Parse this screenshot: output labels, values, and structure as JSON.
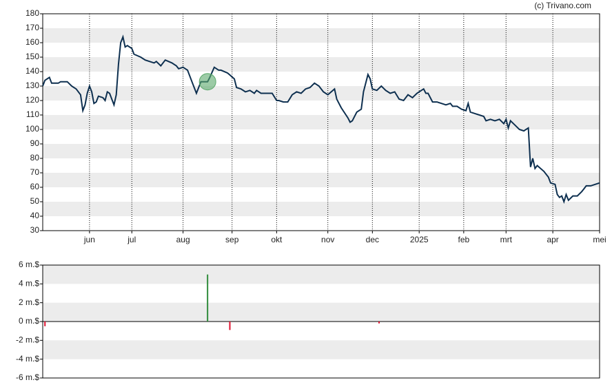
{
  "chart_data": [
    {
      "type": "line",
      "source": "(c) Trivano.com",
      "color": "#0d2f4f",
      "x": [
        0,
        1,
        3,
        4,
        7,
        8,
        11,
        13,
        15,
        17,
        18,
        19,
        20,
        21,
        22,
        23,
        24,
        25,
        27,
        28,
        29,
        30,
        32,
        33,
        34,
        35,
        36,
        37,
        38,
        40,
        41,
        44,
        46,
        50,
        51,
        53,
        55,
        58,
        60,
        61,
        63,
        65,
        67,
        69,
        71,
        74,
        75,
        77,
        79,
        80,
        83,
        86,
        87,
        89,
        91,
        93,
        95,
        96,
        98,
        100,
        103,
        105,
        106,
        108,
        110,
        112,
        114,
        116,
        118,
        120,
        122,
        124,
        126,
        128,
        131,
        132,
        134,
        137,
        138,
        139,
        141,
        143,
        144,
        146,
        147,
        148,
        150,
        152,
        154,
        156,
        158,
        160,
        162,
        164,
        166,
        168,
        170,
        171,
        172,
        173,
        175,
        177,
        179,
        181,
        183,
        184,
        186,
        188,
        190,
        191,
        192,
        194,
        196,
        198,
        199,
        201,
        203,
        205,
        207,
        208,
        209,
        210,
        212,
        214,
        216,
        217,
        218,
        219,
        220,
        221,
        222,
        225,
        227,
        228,
        230,
        231,
        232,
        233,
        234,
        235,
        236,
        238,
        240,
        242,
        243,
        244,
        246,
        248,
        250
      ],
      "values": [
        130,
        134,
        136,
        132,
        132,
        133,
        133,
        130,
        128,
        124,
        113,
        117,
        125,
        130,
        126,
        118,
        119,
        123,
        122,
        120,
        126,
        125,
        117,
        124,
        145,
        160,
        164,
        157,
        158,
        156,
        152,
        150,
        148,
        146,
        147,
        144,
        148,
        146,
        144,
        142,
        143,
        141,
        133,
        125,
        133,
        133,
        136,
        143,
        141,
        141,
        139,
        135,
        129,
        128,
        126,
        127,
        125,
        127,
        125,
        125,
        125,
        120,
        120,
        119,
        119,
        124,
        126,
        125,
        128,
        129,
        132,
        130,
        126,
        124,
        128,
        121,
        115,
        108,
        105,
        106,
        112,
        114,
        126,
        138,
        135,
        128,
        127,
        130,
        127,
        125,
        126,
        121,
        120,
        124,
        122,
        125,
        127,
        128,
        125,
        125,
        119,
        119,
        118,
        117,
        118,
        116,
        116,
        114,
        113,
        118,
        112,
        111,
        110,
        109,
        106,
        107,
        106,
        107,
        104,
        107,
        101,
        106,
        103,
        100,
        99,
        100,
        101,
        74,
        80,
        73,
        75,
        71,
        67,
        63,
        62,
        55,
        53,
        54,
        50,
        55,
        51,
        54,
        54,
        57,
        59,
        61,
        61,
        62,
        63
      ],
      "xlim": [
        0,
        250
      ],
      "xticks": [
        {
          "value": 21,
          "label": "jun"
        },
        {
          "value": 40,
          "label": "jul"
        },
        {
          "value": 63,
          "label": "aug"
        },
        {
          "value": 85,
          "label": "sep"
        },
        {
          "value": 105,
          "label": "okt"
        },
        {
          "value": 128,
          "label": "nov"
        },
        {
          "value": 148,
          "label": "dec"
        },
        {
          "value": 169,
          "label": "2025"
        },
        {
          "value": 189,
          "label": "feb"
        },
        {
          "value": 208,
          "label": "mrt"
        },
        {
          "value": 229,
          "label": "apr"
        },
        {
          "value": 250,
          "label": "mei"
        }
      ],
      "ylim": [
        30,
        180
      ],
      "yticks": [
        30,
        40,
        50,
        60,
        70,
        80,
        90,
        100,
        110,
        120,
        130,
        140,
        150,
        160,
        170,
        180
      ],
      "markers": [
        {
          "x": 74,
          "y": 133,
          "color": "#5aa86a"
        }
      ]
    },
    {
      "type": "bar",
      "x": [
        1,
        74,
        84,
        151
      ],
      "values": [
        -0.5,
        5,
        -0.9,
        -0.2
      ],
      "positive_color": "#2e8b3a",
      "negative_color": "#e0102e",
      "xlim": [
        0,
        250
      ],
      "ylim": [
        -6,
        6
      ],
      "yticks": [
        {
          "value": -6,
          "label": "-6 m.$"
        },
        {
          "value": -4,
          "label": "-4 m.$"
        },
        {
          "value": -2,
          "label": "-2 m.$"
        },
        {
          "value": 0,
          "label": "0 m.$"
        },
        {
          "value": 2,
          "label": "2 m.$"
        },
        {
          "value": 4,
          "label": "4 m.$"
        },
        {
          "value": 6,
          "label": "6 m.$"
        }
      ]
    }
  ]
}
